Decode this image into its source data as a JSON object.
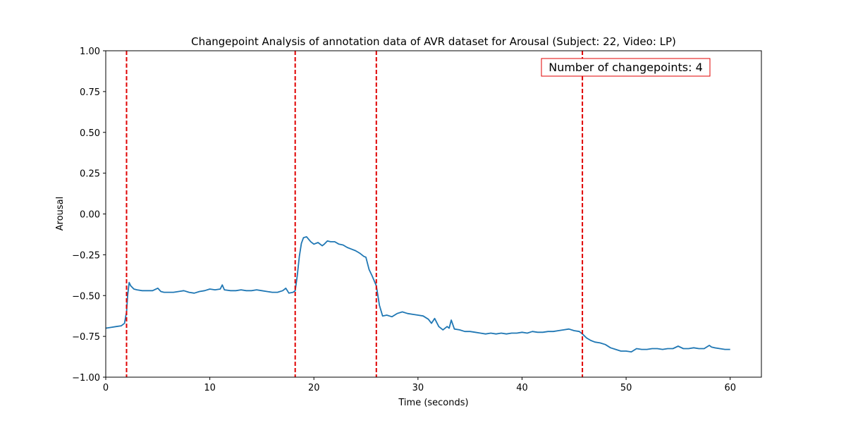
{
  "chart_data": {
    "type": "line",
    "title": "Changepoint Analysis of annotation data of AVR dataset for Arousal (Subject: 22, Video: LP)",
    "xlabel": "Time (seconds)",
    "ylabel": "Arousal",
    "xlim": [
      0,
      63
    ],
    "ylim": [
      -1.0,
      1.0
    ],
    "xticks": [
      0,
      10,
      20,
      30,
      40,
      50,
      60
    ],
    "xtick_labels": [
      "0",
      "10",
      "20",
      "30",
      "40",
      "50",
      "60"
    ],
    "yticks": [
      1.0,
      0.75,
      0.5,
      0.25,
      0.0,
      -0.25,
      -0.5,
      -0.75,
      -1.0
    ],
    "ytick_labels": [
      "1.00",
      "0.75",
      "0.50",
      "0.25",
      "0.00",
      "−0.25",
      "−0.50",
      "−0.75",
      "−1.00"
    ],
    "grid": false,
    "line_color": "#1f77b4",
    "changepoint_color": "#e00000",
    "changepoints": [
      2.0,
      18.2,
      26.0,
      45.8
    ],
    "annotation": {
      "text": "Number of changepoints: 4",
      "color": "#e00000"
    },
    "series": [
      {
        "x": [
          0,
          0.5,
          1.0,
          1.5,
          1.8,
          2.0,
          2.1,
          2.25,
          2.4,
          2.7,
          3.0,
          3.5,
          4.0,
          4.5,
          5.0,
          5.3,
          5.6,
          6.0,
          6.5,
          7.0,
          7.5,
          8.0,
          8.5,
          9.0,
          9.5,
          10.0,
          10.5,
          11.0,
          11.2,
          11.4,
          12.0,
          12.5,
          13.0,
          13.5,
          14.0,
          14.5,
          15.0,
          15.5,
          16.0,
          16.5,
          17.0,
          17.3,
          17.6,
          18.0,
          18.2,
          18.4,
          18.6,
          18.8,
          19.0,
          19.3,
          19.7,
          20.0,
          20.4,
          20.8,
          21.0,
          21.3,
          21.6,
          22.0,
          22.4,
          22.8,
          23.2,
          23.6,
          24.0,
          24.4,
          24.8,
          25.0,
          25.3,
          25.6,
          26.0,
          26.3,
          26.6,
          27.0,
          27.5,
          28.0,
          28.5,
          29.0,
          29.5,
          30.0,
          30.5,
          31.0,
          31.3,
          31.6,
          32.0,
          32.4,
          32.8,
          33.0,
          33.2,
          33.5,
          34.0,
          34.5,
          35.0,
          35.5,
          36.0,
          36.5,
          37.0,
          37.5,
          38.0,
          38.5,
          39.0,
          39.5,
          40.0,
          40.5,
          41.0,
          41.5,
          42.0,
          42.5,
          43.0,
          43.5,
          44.0,
          44.5,
          45.0,
          45.5,
          45.8,
          46.2,
          46.6,
          47.0,
          47.5,
          48.0,
          48.5,
          49.0,
          49.5,
          50.0,
          50.5,
          51.0,
          51.5,
          52.0,
          52.5,
          53.0,
          53.5,
          54.0,
          54.5,
          55.0,
          55.5,
          56.0,
          56.5,
          57.0,
          57.5,
          58.0,
          58.2,
          58.5,
          59.0,
          59.5,
          60.0
        ],
        "y": [
          -0.7,
          -0.695,
          -0.69,
          -0.685,
          -0.67,
          -0.6,
          -0.5,
          -0.42,
          -0.44,
          -0.46,
          -0.465,
          -0.47,
          -0.47,
          -0.47,
          -0.455,
          -0.475,
          -0.48,
          -0.48,
          -0.48,
          -0.475,
          -0.47,
          -0.48,
          -0.485,
          -0.475,
          -0.47,
          -0.46,
          -0.465,
          -0.46,
          -0.435,
          -0.465,
          -0.47,
          -0.47,
          -0.465,
          -0.47,
          -0.47,
          -0.465,
          -0.47,
          -0.475,
          -0.48,
          -0.48,
          -0.47,
          -0.455,
          -0.485,
          -0.48,
          -0.47,
          -0.38,
          -0.26,
          -0.18,
          -0.145,
          -0.14,
          -0.17,
          -0.185,
          -0.175,
          -0.195,
          -0.185,
          -0.165,
          -0.17,
          -0.17,
          -0.185,
          -0.19,
          -0.205,
          -0.215,
          -0.225,
          -0.24,
          -0.26,
          -0.265,
          -0.34,
          -0.38,
          -0.44,
          -0.56,
          -0.625,
          -0.62,
          -0.63,
          -0.61,
          -0.6,
          -0.61,
          -0.615,
          -0.62,
          -0.625,
          -0.645,
          -0.67,
          -0.64,
          -0.69,
          -0.71,
          -0.69,
          -0.7,
          -0.65,
          -0.705,
          -0.71,
          -0.72,
          -0.72,
          -0.725,
          -0.73,
          -0.735,
          -0.73,
          -0.735,
          -0.73,
          -0.735,
          -0.73,
          -0.73,
          -0.725,
          -0.73,
          -0.72,
          -0.725,
          -0.725,
          -0.72,
          -0.72,
          -0.715,
          -0.71,
          -0.705,
          -0.715,
          -0.72,
          -0.735,
          -0.76,
          -0.775,
          -0.785,
          -0.79,
          -0.8,
          -0.82,
          -0.83,
          -0.84,
          -0.84,
          -0.845,
          -0.825,
          -0.83,
          -0.83,
          -0.825,
          -0.825,
          -0.83,
          -0.825,
          -0.825,
          -0.81,
          -0.825,
          -0.825,
          -0.82,
          -0.825,
          -0.825,
          -0.805,
          -0.815,
          -0.82,
          -0.825,
          -0.83,
          -0.83
        ]
      }
    ]
  }
}
